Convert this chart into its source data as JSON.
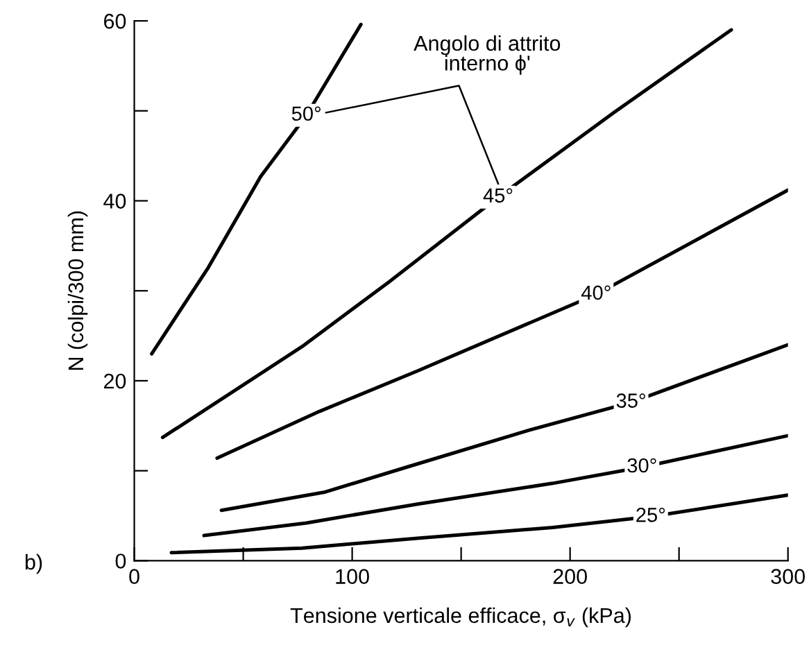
{
  "chart_data": {
    "type": "line",
    "xlabel": "Tensione verticale efficace, σ$_{v}$ (kPa)",
    "ylabel": "N (colpi/300 mm)",
    "xlim": [
      0,
      300
    ],
    "ylim": [
      0,
      60
    ],
    "xticks": [
      0,
      {
        "value": 50,
        "label": null
      },
      100,
      {
        "value": 150,
        "label": null
      },
      200,
      {
        "value": 250,
        "label": null
      },
      300
    ],
    "yticks": [
      0,
      {
        "value": 10,
        "label": null
      },
      20,
      {
        "value": 30,
        "label": null
      },
      40,
      {
        "value": 50,
        "label": null
      },
      60
    ],
    "grid": false,
    "legend": false,
    "marker": "none",
    "line_style": "solid",
    "series": [
      {
        "color": "#000000",
        "x": [
          8,
          34,
          58,
          79,
          104
        ],
        "values": [
          23,
          32.6,
          42.7,
          49.5,
          59.6
        ]
      },
      {
        "color": "#000000",
        "x": [
          13,
          77,
          117,
          167,
          220,
          274
        ],
        "values": [
          13.7,
          23.8,
          31,
          40.4,
          49.8,
          59
        ]
      },
      {
        "color": "#000000",
        "x": [
          38,
          85,
          130,
          212,
          300
        ],
        "values": [
          11.4,
          16.6,
          21.1,
          29.6,
          41.2
        ]
      },
      {
        "color": "#000000",
        "x": [
          40,
          87,
          125,
          181,
          228,
          300
        ],
        "values": [
          5.6,
          7.6,
          10.4,
          14.5,
          17.6,
          24
        ]
      },
      {
        "color": "#000000",
        "x": [
          32,
          79,
          130,
          192,
          233,
          300
        ],
        "values": [
          2.8,
          4.2,
          6.3,
          8.6,
          10.4,
          13.9
        ]
      },
      {
        "color": "#000000",
        "x": [
          17,
          77,
          130,
          192,
          237,
          300
        ],
        "values": [
          0.9,
          1.4,
          2.5,
          3.7,
          4.9,
          7.3
        ]
      }
    ],
    "annotations": [
      {
        "text": "50°",
        "x": 79,
        "y": 49.5
      },
      {
        "text": "45°",
        "x": 167,
        "y": 40.4
      },
      {
        "text": "40°",
        "x": 212,
        "y": 29.6
      },
      {
        "text": "35°",
        "x": 228,
        "y": 17.6
      },
      {
        "text": "30°",
        "x": 233,
        "y": 10.4
      },
      {
        "text": "25°",
        "x": 237,
        "y": 4.9
      },
      "Angolo di attrito\ninterno ϕ'",
      "b)"
    ]
  }
}
